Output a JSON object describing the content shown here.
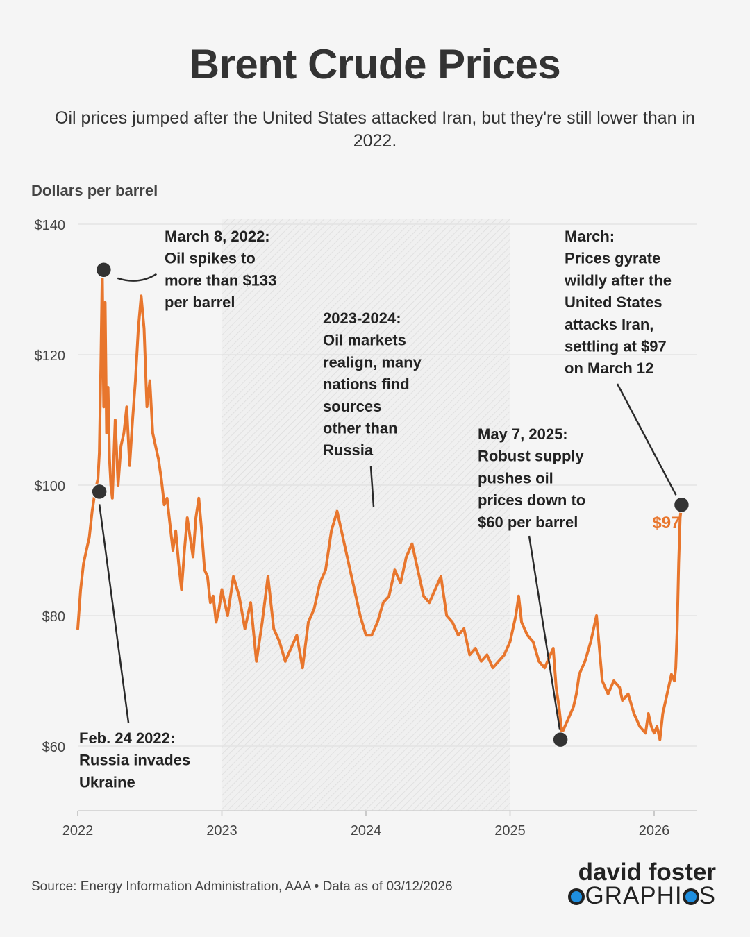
{
  "chart_data": {
    "type": "line",
    "title": "Brent Crude Prices",
    "subtitle": "Oil prices jumped after the United States attacked Iran, but they're still lower than in 2022.",
    "ylabel": "Dollars per barrel",
    "xlabel": "",
    "ylim": [
      50,
      141
    ],
    "xlim": [
      2022.0,
      2026.45
    ],
    "yticks": [
      60,
      80,
      100,
      120,
      140
    ],
    "ytick_labels": [
      "$60",
      "$80",
      "$100",
      "$120",
      "$140"
    ],
    "xticks": [
      2022,
      2023,
      2024,
      2025,
      2026
    ],
    "xtick_labels": [
      "2022",
      "2023",
      "2024",
      "2025",
      "2026"
    ],
    "grid": true,
    "shaded_range": [
      2023.0,
      2025.0
    ],
    "series": [
      {
        "color": "#e8762d",
        "x": [
          2022.0,
          2022.02,
          2022.04,
          2022.06,
          2022.08,
          2022.1,
          2022.12,
          2022.14,
          2022.15,
          2022.16,
          2022.17,
          2022.18,
          2022.19,
          2022.2,
          2022.21,
          2022.22,
          2022.23,
          2022.24,
          2022.26,
          2022.28,
          2022.3,
          2022.32,
          2022.34,
          2022.36,
          2022.38,
          2022.4,
          2022.42,
          2022.44,
          2022.46,
          2022.48,
          2022.5,
          2022.52,
          2022.54,
          2022.56,
          2022.58,
          2022.6,
          2022.62,
          2022.64,
          2022.66,
          2022.68,
          2022.7,
          2022.72,
          2022.74,
          2022.76,
          2022.78,
          2022.8,
          2022.82,
          2022.84,
          2022.86,
          2022.88,
          2022.9,
          2022.92,
          2022.94,
          2022.96,
          2022.98,
          2023.0,
          2023.04,
          2023.08,
          2023.12,
          2023.16,
          2023.2,
          2023.24,
          2023.28,
          2023.32,
          2023.36,
          2023.4,
          2023.44,
          2023.48,
          2023.52,
          2023.56,
          2023.6,
          2023.64,
          2023.68,
          2023.72,
          2023.76,
          2023.8,
          2023.84,
          2023.88,
          2023.92,
          2023.96,
          2024.0,
          2024.04,
          2024.08,
          2024.12,
          2024.16,
          2024.2,
          2024.24,
          2024.28,
          2024.32,
          2024.36,
          2024.4,
          2024.44,
          2024.48,
          2024.52,
          2024.56,
          2024.6,
          2024.64,
          2024.68,
          2024.72,
          2024.76,
          2024.8,
          2024.84,
          2024.88,
          2024.92,
          2024.96,
          2025.0,
          2025.04,
          2025.06,
          2025.08,
          2025.12,
          2025.16,
          2025.2,
          2025.24,
          2025.28,
          2025.3,
          2025.32,
          2025.34,
          2025.36,
          2025.4,
          2025.44,
          2025.46,
          2025.48,
          2025.52,
          2025.56,
          2025.6,
          2025.64,
          2025.68,
          2025.72,
          2025.76,
          2025.78,
          2025.82,
          2025.86,
          2025.9,
          2025.94,
          2025.96,
          2025.98,
          2026.0,
          2026.02,
          2026.04,
          2026.06,
          2026.08,
          2026.1,
          2026.12,
          2026.14,
          2026.15,
          2026.16,
          2026.17,
          2026.18,
          2026.19
        ],
        "y": [
          78,
          84,
          88,
          90,
          92,
          96,
          99,
          101,
          105,
          118,
          133,
          112,
          128,
          108,
          115,
          104,
          100,
          98,
          110,
          100,
          106,
          108,
          112,
          103,
          110,
          116,
          124,
          129,
          124,
          112,
          116,
          108,
          106,
          104,
          101,
          97,
          98,
          94,
          90,
          93,
          88,
          84,
          90,
          95,
          92,
          89,
          95,
          98,
          93,
          87,
          86,
          82,
          83,
          79,
          81,
          84,
          80,
          86,
          83,
          78,
          82,
          73,
          79,
          86,
          78,
          76,
          73,
          75,
          77,
          72,
          79,
          81,
          85,
          87,
          93,
          96,
          92,
          88,
          84,
          80,
          77,
          77,
          79,
          82,
          83,
          87,
          85,
          89,
          91,
          87,
          83,
          82,
          84,
          86,
          80,
          79,
          77,
          78,
          74,
          75,
          73,
          74,
          72,
          73,
          74,
          76,
          80,
          83,
          79,
          77,
          76,
          73,
          72,
          74,
          75,
          69,
          66,
          62,
          64,
          66,
          68,
          71,
          73,
          76,
          80,
          70,
          68,
          70,
          69,
          67,
          68,
          65,
          63,
          62,
          65,
          63,
          62,
          63,
          61,
          65,
          67,
          69,
          71,
          70,
          72,
          78,
          88,
          95,
          97
        ]
      }
    ],
    "end_label": "$97",
    "annotations": [
      {
        "lines": [
          "March 8, 2022:",
          "Oil spikes to",
          "more than $133",
          "per barrel"
        ],
        "x": 2022.18,
        "y": 133
      },
      {
        "lines": [
          "Feb. 24 2022:",
          "Russia invades",
          "Ukraine"
        ],
        "x": 2022.15,
        "y": 99
      },
      {
        "lines": [
          "2023-2024:",
          "Oil markets",
          "realign, many",
          "nations find",
          "sources",
          "other than",
          "Russia"
        ],
        "x": 2024.05,
        "y": 95
      },
      {
        "lines": [
          "May 7, 2025:",
          "Robust supply",
          "pushes oil",
          "prices down to",
          "$60 per barrel"
        ],
        "x": 2025.35,
        "y": 61
      },
      {
        "lines": [
          "March:",
          "Prices gyrate",
          "wildly after the",
          "United States",
          "attacks Iran,",
          "settling at $97",
          "on March 12"
        ],
        "x": 2026.19,
        "y": 97
      }
    ]
  },
  "source_text": "Source: Energy Information Administration, AAA • Data as of 03/12/2026",
  "logo": {
    "line1": "david foster",
    "line2_a": "GRAPHI",
    "line2_b": "S",
    "line2_pre": "",
    "line2_mid": ""
  }
}
